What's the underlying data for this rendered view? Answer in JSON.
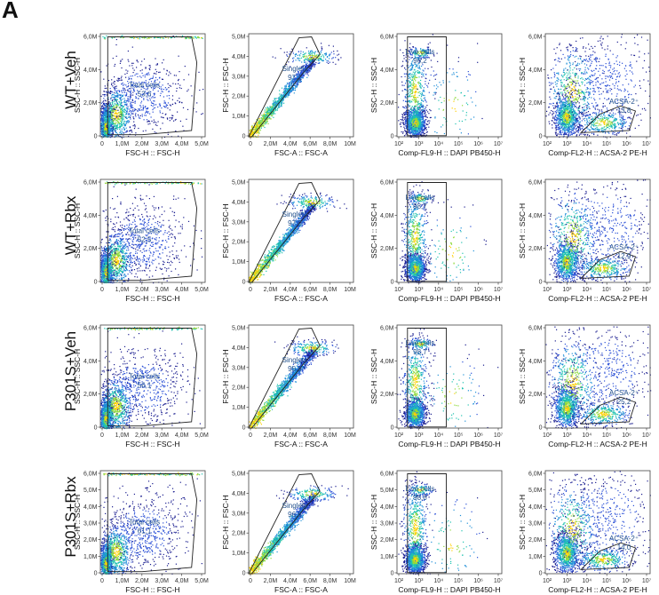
{
  "panel_label": "A",
  "rows": [
    {
      "label": "WT+Veh"
    },
    {
      "label": "WT+Rbx"
    },
    {
      "label": "P301S+Veh"
    },
    {
      "label": "P301S+Rbx"
    }
  ],
  "chart_data": [
    {
      "type": "scatter",
      "panel": "A",
      "row": "WT+Veh",
      "column": 1,
      "xlabel": "FSC-H :: FSC-H",
      "ylabel": "SSC-H :: SSC-H",
      "xticks": [
        "0",
        "1,0M",
        "2,0M",
        "3,0M",
        "4,0M",
        "5,0M"
      ],
      "yticks": [
        "0",
        "2,0M",
        "4,0M",
        "6,0M"
      ],
      "gate": {
        "name": "Total cells",
        "value": "53,6"
      }
    },
    {
      "type": "scatter",
      "panel": "A",
      "row": "WT+Veh",
      "column": 2,
      "xlabel": "FSC-A :: FSC-A",
      "ylabel": "FSC-H :: FSC-H",
      "xticks": [
        "0",
        "2,0M",
        "4,0M",
        "6,0M",
        "8,0M",
        "10M"
      ],
      "yticks": [
        "0",
        "1,0M",
        "2,0M",
        "3,0M",
        "4,0M",
        "5,0M"
      ],
      "gate": {
        "name": "Singlets",
        "value": "97,1"
      }
    },
    {
      "type": "scatter",
      "panel": "A",
      "row": "WT+Veh",
      "column": 3,
      "xlabel": "Comp-FL9-H :: DAPI PB450-H",
      "ylabel": "SSC-H :: SSC-H",
      "xticks": [
        "10²",
        "10³",
        "10⁴",
        "10⁵",
        "10⁶",
        "10⁷"
      ],
      "yticks": [
        "0",
        "2,0M",
        "4,0M",
        "6,0M"
      ],
      "gate": {
        "name": "Live cells",
        "value": "96,2"
      }
    },
    {
      "type": "scatter",
      "panel": "A",
      "row": "WT+Veh",
      "column": 4,
      "xlabel": "Comp-FL2-H :: ACSA-2 PE-H",
      "ylabel": "SSC-H :: SSC-H",
      "xticks": [
        "10²",
        "10³",
        "10⁴",
        "10⁵",
        "10⁶",
        "10⁷"
      ],
      "yticks": [
        "0",
        "2,0M",
        "4,0M",
        "6,0M"
      ],
      "gate": {
        "name": "ACSA-2⁺",
        "value": "13,8"
      }
    },
    {
      "type": "scatter",
      "panel": "A",
      "row": "WT+Rbx",
      "column": 1,
      "xlabel": "FSC-H :: FSC-H",
      "ylabel": "SSC-H :: SSC-H",
      "xticks": [
        "0",
        "1,0M",
        "2,0M",
        "3,0M",
        "4,0M",
        "5,0M"
      ],
      "yticks": [
        "0",
        "2,0M",
        "4,0M",
        "6,0M"
      ],
      "gate": {
        "name": "Total cells",
        "value": "52,5"
      }
    },
    {
      "type": "scatter",
      "panel": "A",
      "row": "WT+Rbx",
      "column": 2,
      "xlabel": "FSC-A :: FSC-A",
      "ylabel": "FSC-H :: FSC-H",
      "xticks": [
        "0",
        "2,0M",
        "4,0M",
        "6,0M",
        "8,0M",
        "10M"
      ],
      "yticks": [
        "0",
        "1,0M",
        "2,0M",
        "3,0M",
        "4,0M",
        "5,0M"
      ],
      "gate": {
        "name": "Singlets",
        "value": "97,0"
      }
    },
    {
      "type": "scatter",
      "panel": "A",
      "row": "WT+Rbx",
      "column": 3,
      "xlabel": "Comp-FL9-H :: DAPI PB450-H",
      "ylabel": "SSC-H :: SSC-H",
      "xticks": [
        "10²",
        "10³",
        "10⁴",
        "10⁵",
        "10⁶",
        "10⁷"
      ],
      "yticks": [
        "0",
        "2,0M",
        "4,0M",
        "6,0M"
      ],
      "gate": {
        "name": "Live cells",
        "value": "98,7"
      }
    },
    {
      "type": "scatter",
      "panel": "A",
      "row": "WT+Rbx",
      "column": 4,
      "xlabel": "Comp-FL2-H :: ACSA-2 PE-H",
      "ylabel": "SSC-H :: SSC-H",
      "xticks": [
        "10²",
        "10³",
        "10⁴",
        "10⁵",
        "10⁶",
        "10⁷"
      ],
      "yticks": [
        "0",
        "2,0M",
        "4,0M",
        "6,0M"
      ],
      "gate": {
        "name": "ACSA-2⁺",
        "value": "12,9"
      }
    },
    {
      "type": "scatter",
      "panel": "A",
      "row": "P301S+Veh",
      "column": 1,
      "xlabel": "FSC-H :: FSC-H",
      "ylabel": "SSC-H :: SSC-H",
      "xticks": [
        "0",
        "1,0M",
        "2,0M",
        "3,0M",
        "4,0M",
        "5,0M"
      ],
      "yticks": [
        "0",
        "2,0M",
        "4,0M",
        "6,0M"
      ],
      "gate": {
        "name": "Total cells",
        "value": "56,1"
      }
    },
    {
      "type": "scatter",
      "panel": "A",
      "row": "P301S+Veh",
      "column": 2,
      "xlabel": "FSC-A :: FSC-A",
      "ylabel": "FSC-H :: FSC-H",
      "xticks": [
        "0",
        "2,0M",
        "4,0M",
        "6,0M",
        "8,0M",
        "10M"
      ],
      "yticks": [
        "0",
        "1,0M",
        "2,0M",
        "3,0M",
        "4,0M",
        "5,0M"
      ],
      "gate": {
        "name": "Singlets",
        "value": "95,9"
      }
    },
    {
      "type": "scatter",
      "panel": "A",
      "row": "P301S+Veh",
      "column": 3,
      "xlabel": "Comp-FL9-H :: DAPI PB450-H",
      "ylabel": "SSC-H :: SSC-H",
      "xticks": [
        "10²",
        "10³",
        "10⁴",
        "10⁵",
        "10⁶",
        "10⁷"
      ],
      "yticks": [
        "0",
        "2,0M",
        "4,0M",
        "6,0M"
      ],
      "gate": {
        "name": "Live cells",
        "value": "98,7"
      }
    },
    {
      "type": "scatter",
      "panel": "A",
      "row": "P301S+Veh",
      "column": 4,
      "xlabel": "Comp-FL2-H :: ACSA-2 PE-H",
      "ylabel": "SSC-H :: SSC-H",
      "xticks": [
        "10²",
        "10³",
        "10⁴",
        "10⁵",
        "10⁶",
        "10⁷"
      ],
      "yticks": [
        "0",
        "2,0M",
        "4,0M",
        "6,0M"
      ],
      "gate": {
        "name": "ACSA-2⁺",
        "value": "25,2"
      }
    },
    {
      "type": "scatter",
      "panel": "A",
      "row": "P301S+Rbx",
      "column": 1,
      "xlabel": "FSC-H :: FSC-H",
      "ylabel": "SSC-H :: SSC-H",
      "xticks": [
        "0",
        "1,0M",
        "2,0M",
        "3,0M",
        "4,0M",
        "5,0M"
      ],
      "yticks": [
        "0",
        "1,0M",
        "2,0M",
        "3,0M",
        "4,0M",
        "5,0M",
        "6,0M"
      ],
      "gate": {
        "name": "Total cells",
        "value": "61,1"
      }
    },
    {
      "type": "scatter",
      "panel": "A",
      "row": "P301S+Rbx",
      "column": 2,
      "xlabel": "FSC-A :: FSC-A",
      "ylabel": "FSC-H :: FSC-H",
      "xticks": [
        "0",
        "2,0M",
        "4,0M",
        "6,0M",
        "8,0M",
        "10M"
      ],
      "yticks": [
        "0",
        "1,0M",
        "2,0M",
        "3,0M",
        "4,0M",
        "5,0M"
      ],
      "gate": {
        "name": "Singlets",
        "value": "96,6"
      }
    },
    {
      "type": "scatter",
      "panel": "A",
      "row": "P301S+Rbx",
      "column": 3,
      "xlabel": "Comp-FL9-H :: DAPI PB450-H",
      "ylabel": "SSC-H :: SSC-H",
      "xticks": [
        "10²",
        "10³",
        "10⁴",
        "10⁵",
        "10⁶",
        "10⁷"
      ],
      "yticks": [
        "0",
        "1,0M",
        "2,0M",
        "3,0M",
        "4,0M",
        "5,0M",
        "6,0M"
      ],
      "gate": {
        "name": "Live cells",
        "value": "98,6"
      }
    },
    {
      "type": "scatter",
      "panel": "A",
      "row": "P301S+Rbx",
      "column": 4,
      "xlabel": "Comp-FL2-H :: ACSA-2 PE-H",
      "ylabel": "SSC-H :: SSC-H",
      "xticks": [
        "10²",
        "10³",
        "10⁴",
        "10⁵",
        "10⁶",
        "10⁷"
      ],
      "yticks": [
        "0",
        "1,0M",
        "2,0M",
        "3,0M",
        "4,0M",
        "5,0M",
        "6,0M"
      ],
      "gate": {
        "name": "ACSA-2⁺",
        "value": "14,0"
      }
    }
  ]
}
